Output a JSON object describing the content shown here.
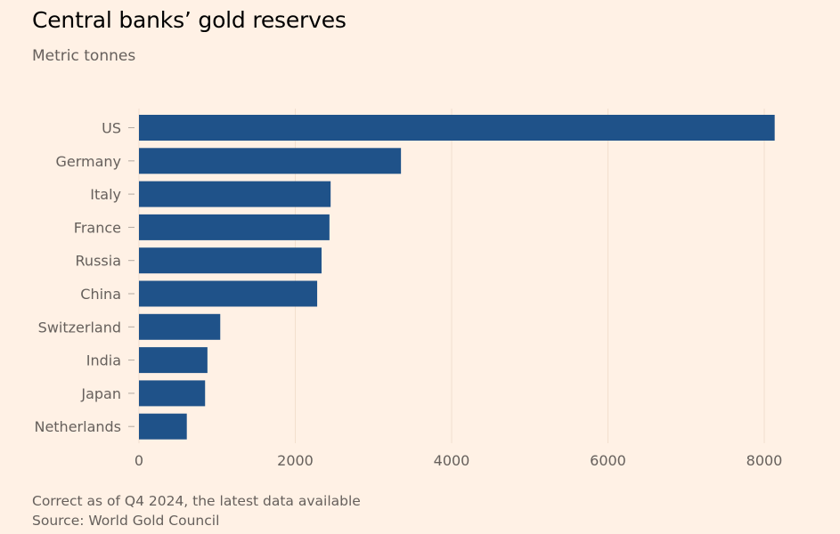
{
  "title": "Central banks’ gold reserves",
  "subtitle": "Metric tonnes",
  "footnote": "Correct as of Q4 2024, the latest data available",
  "source": "Source: World Gold Council",
  "colors": {
    "background": "#fff1e5",
    "bar": "#1f5289",
    "grid": "#f2dfce"
  },
  "chart_data": {
    "type": "bar",
    "orientation": "horizontal",
    "categories": [
      "US",
      "Germany",
      "Italy",
      "France",
      "Russia",
      "China",
      "Switzerland",
      "India",
      "Japan",
      "Netherlands"
    ],
    "values": [
      8133,
      3352,
      2452,
      2437,
      2336,
      2280,
      1040,
      876,
      846,
      612
    ],
    "xlim": [
      0,
      8500
    ],
    "xticks": [
      0,
      2000,
      4000,
      6000,
      8000
    ],
    "grid": "vertical"
  }
}
